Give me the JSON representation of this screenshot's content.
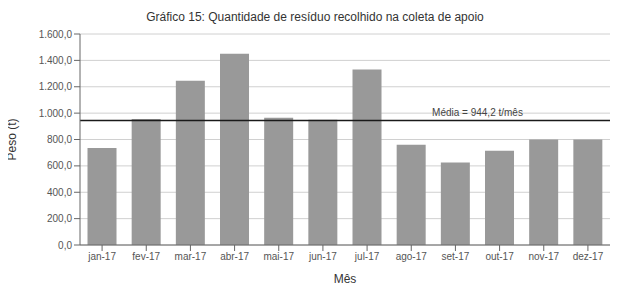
{
  "chart_data": {
    "type": "bar",
    "title": "Gráfico 15: Quantidade de resíduo recolhido na coleta de apoio",
    "xlabel": "Mês",
    "ylabel": "Peso (t)",
    "categories": [
      "jan-17",
      "fev-17",
      "mar-17",
      "abr-17",
      "mai-17",
      "jun-17",
      "jul-17",
      "ago-17",
      "set-17",
      "out-17",
      "nov-17",
      "dez-17"
    ],
    "values": [
      735,
      955,
      1245,
      1450,
      965,
      950,
      1330,
      760,
      625,
      715,
      800,
      800
    ],
    "color": "#999999",
    "ylim": [
      0,
      1600
    ],
    "yticks": [
      {
        "value": 0,
        "label": "0,0"
      },
      {
        "value": 200,
        "label": "200,0"
      },
      {
        "value": 400,
        "label": "400,0"
      },
      {
        "value": 600,
        "label": "600,0"
      },
      {
        "value": 800,
        "label": "800,0"
      },
      {
        "value": 1000,
        "label": "1.000,0"
      },
      {
        "value": 1200,
        "label": "1.200,0"
      },
      {
        "value": 1400,
        "label": "1.400,0"
      },
      {
        "value": 1600,
        "label": "1.600,0"
      }
    ],
    "grid": true,
    "annotations": [
      {
        "y": 944.2,
        "text": "Média = 944,2 t/mês",
        "color": "#1a1a1a"
      }
    ]
  }
}
